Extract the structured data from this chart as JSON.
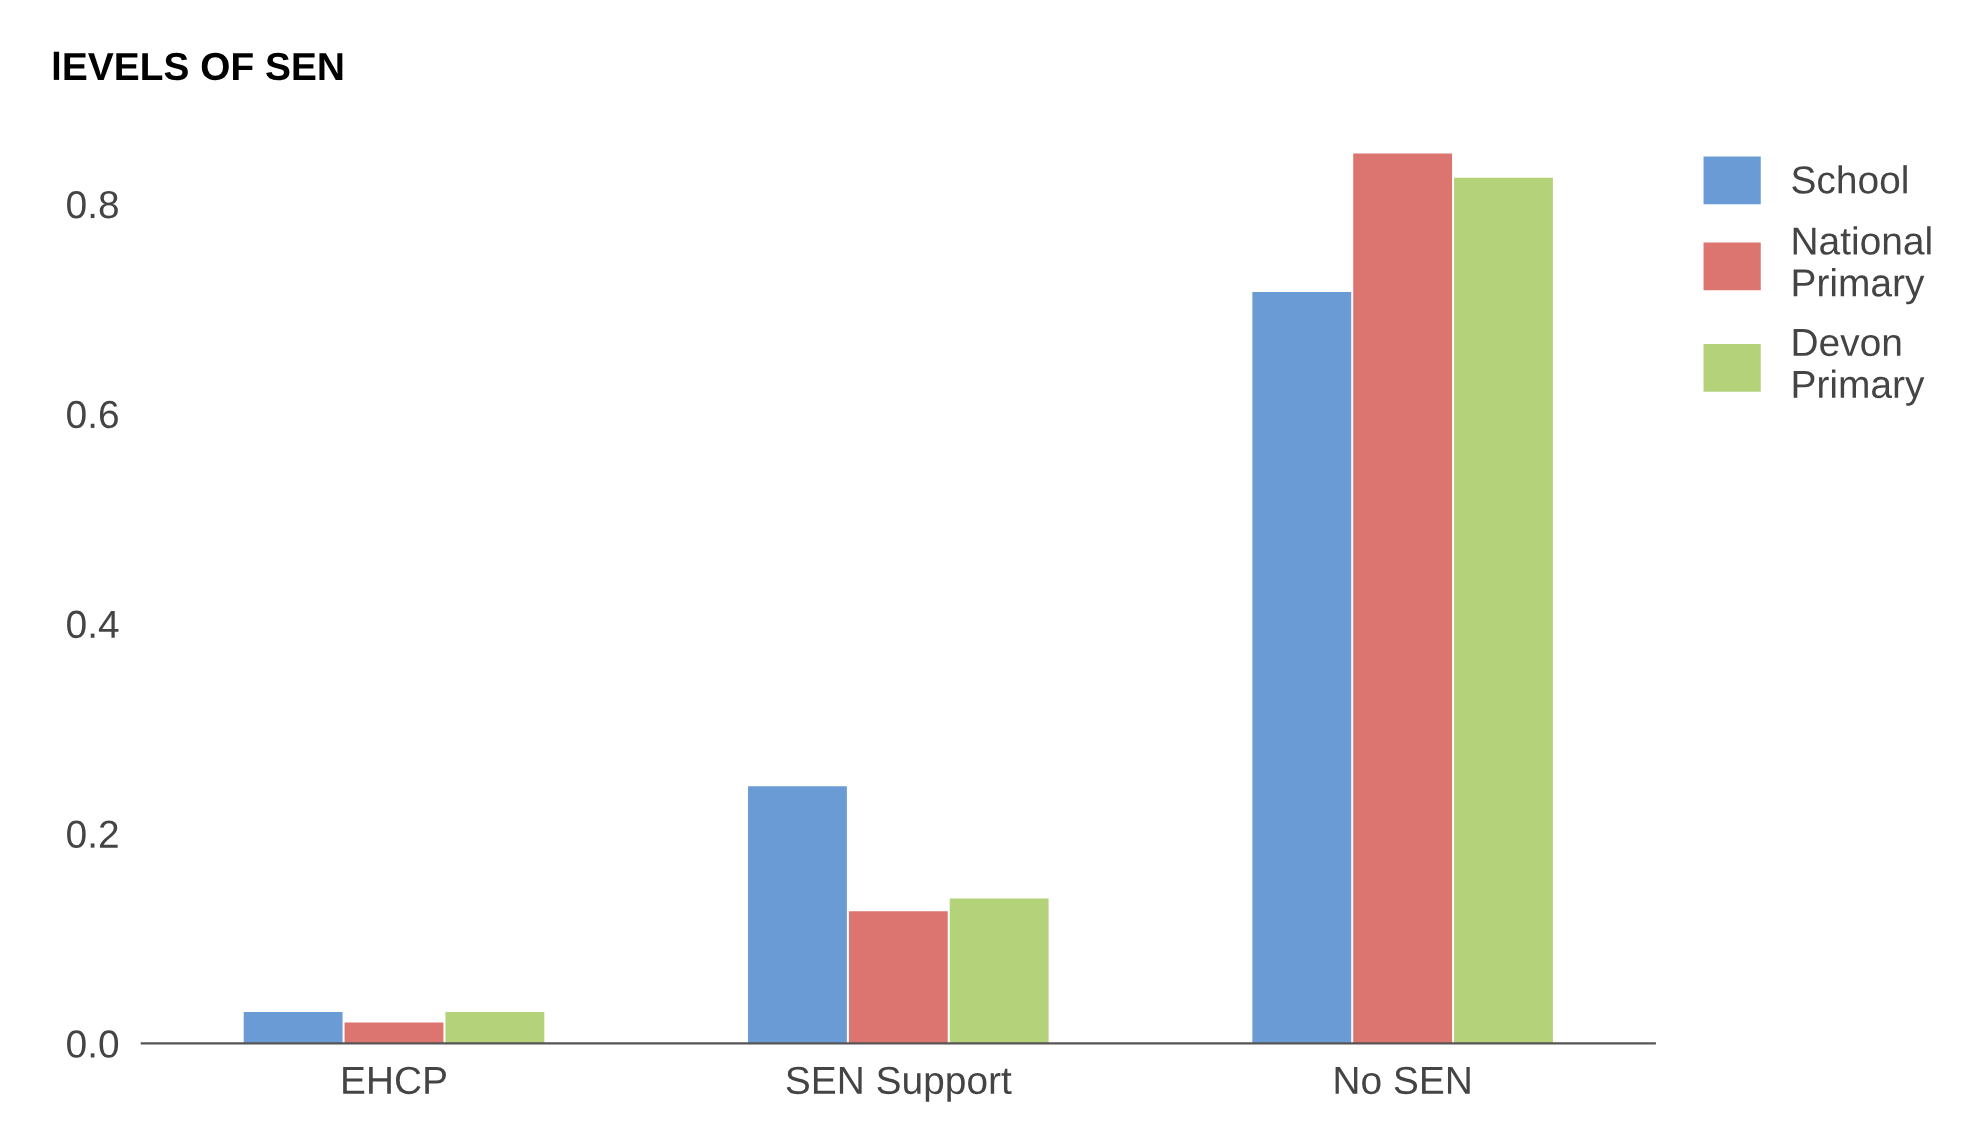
{
  "chart_data": {
    "type": "bar",
    "title": "lEVELS OF SEN",
    "categories": [
      "EHCP",
      "SEN Support",
      "No SEN"
    ],
    "series": [
      {
        "name": "School",
        "color": "#6a9bd4",
        "values": [
          0.03,
          0.245,
          0.716
        ]
      },
      {
        "name": "National\nPrimary",
        "color": "#dc756f",
        "values": [
          0.02,
          0.126,
          0.848
        ]
      },
      {
        "name": "Devon\nPrimary",
        "color": "#b3d279",
        "values": [
          0.03,
          0.138,
          0.825
        ]
      }
    ],
    "ylim": [
      0,
      0.86
    ],
    "yticks": [
      {
        "value": 0,
        "label": "0.0"
      },
      0.2,
      0.4,
      0.6,
      0.8
    ],
    "grid": false,
    "legend": "top right"
  }
}
